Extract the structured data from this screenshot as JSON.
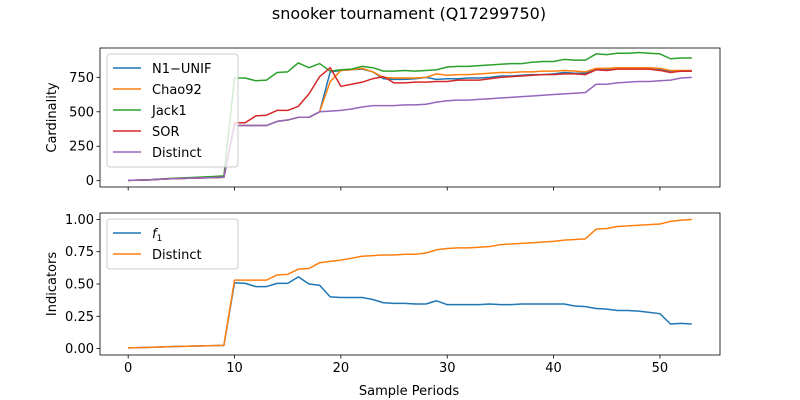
{
  "title": "snooker tournament (Q17299750)",
  "xlabel": "Sample Periods",
  "chart_data": [
    {
      "type": "line",
      "ylabel": "Cardinality",
      "xlim": [
        -2.65,
        55.65
      ],
      "ylim": [
        -46,
        963
      ],
      "x_ticks": [
        0,
        10,
        20,
        30,
        40,
        50
      ],
      "y_ticks": [
        0,
        250,
        500,
        750
      ],
      "y_tick_labels": [
        "0",
        "250",
        "500",
        "750"
      ],
      "legend_position": "upper-left",
      "x": [
        0,
        1,
        2,
        3,
        4,
        5,
        6,
        7,
        8,
        9,
        10,
        11,
        12,
        13,
        14,
        15,
        16,
        17,
        18,
        19,
        20,
        21,
        22,
        23,
        24,
        25,
        26,
        27,
        28,
        29,
        30,
        31,
        32,
        33,
        34,
        35,
        36,
        37,
        38,
        39,
        40,
        41,
        42,
        43,
        44,
        45,
        46,
        47,
        48,
        49,
        50,
        51,
        52,
        53
      ],
      "series": [
        {
          "name": "N1−UNIF",
          "color": "#1f77b4",
          "values": [
            2,
            4,
            6,
            10,
            14,
            16,
            18,
            20,
            22,
            25,
            400,
            400,
            400,
            400,
            430,
            440,
            460,
            460,
            500,
            790,
            800,
            805,
            810,
            790,
            740,
            735,
            735,
            740,
            750,
            735,
            740,
            740,
            745,
            745,
            750,
            760,
            760,
            765,
            770,
            770,
            775,
            785,
            780,
            780,
            810,
            810,
            815,
            815,
            815,
            815,
            810,
            795,
            795,
            795
          ]
        },
        {
          "name": "Chao92",
          "color": "#ff7f0e",
          "values": [
            2,
            4,
            6,
            10,
            14,
            16,
            18,
            20,
            22,
            25,
            400,
            400,
            400,
            400,
            430,
            440,
            460,
            460,
            500,
            720,
            800,
            805,
            815,
            790,
            750,
            745,
            745,
            745,
            750,
            775,
            765,
            770,
            770,
            775,
            780,
            785,
            785,
            790,
            790,
            795,
            795,
            800,
            795,
            790,
            815,
            815,
            820,
            820,
            820,
            820,
            815,
            800,
            800,
            800
          ]
        },
        {
          "name": "Jack1",
          "color": "#2ca02c",
          "values": [
            2,
            4,
            7,
            12,
            17,
            20,
            23,
            27,
            30,
            35,
            745,
            745,
            725,
            730,
            785,
            790,
            855,
            820,
            850,
            795,
            805,
            810,
            830,
            820,
            795,
            795,
            800,
            795,
            800,
            805,
            825,
            830,
            830,
            835,
            840,
            845,
            850,
            850,
            860,
            865,
            865,
            880,
            875,
            875,
            920,
            915,
            925,
            925,
            930,
            925,
            920,
            885,
            890,
            890
          ]
        },
        {
          "name": "SOR",
          "color": "#d62728",
          "values": [
            2,
            4,
            6,
            10,
            14,
            16,
            18,
            20,
            22,
            25,
            420,
            420,
            470,
            475,
            510,
            510,
            540,
            630,
            755,
            820,
            685,
            700,
            715,
            740,
            755,
            710,
            710,
            715,
            715,
            720,
            720,
            730,
            730,
            730,
            740,
            750,
            755,
            760,
            765,
            770,
            770,
            775,
            775,
            770,
            805,
            800,
            810,
            810,
            810,
            810,
            800,
            785,
            795,
            795
          ]
        },
        {
          "name": "Distinct",
          "color": "#9467bd",
          "values": [
            2,
            4,
            6,
            10,
            14,
            16,
            18,
            20,
            22,
            25,
            400,
            400,
            400,
            400,
            430,
            440,
            460,
            460,
            500,
            505,
            510,
            520,
            535,
            545,
            545,
            545,
            550,
            550,
            555,
            570,
            580,
            585,
            585,
            590,
            595,
            600,
            605,
            610,
            615,
            620,
            625,
            630,
            635,
            640,
            700,
            700,
            710,
            715,
            720,
            720,
            725,
            730,
            745,
            750
          ]
        }
      ]
    },
    {
      "type": "line",
      "ylabel": "Indicators",
      "xlim": [
        -2.65,
        55.65
      ],
      "ylim": [
        -0.05,
        1.05
      ],
      "x_ticks": [
        0,
        10,
        20,
        30,
        40,
        50
      ],
      "x_tick_labels": [
        "0",
        "10",
        "20",
        "30",
        "40",
        "50"
      ],
      "y_ticks": [
        0.0,
        0.25,
        0.5,
        0.75,
        1.0
      ],
      "y_tick_labels": [
        "0.00",
        "0.25",
        "0.50",
        "0.75",
        "1.00"
      ],
      "legend_position": "upper-left",
      "x": [
        0,
        1,
        2,
        3,
        4,
        5,
        6,
        7,
        8,
        9,
        10,
        11,
        12,
        13,
        14,
        15,
        16,
        17,
        18,
        19,
        20,
        21,
        22,
        23,
        24,
        25,
        26,
        27,
        28,
        29,
        30,
        31,
        32,
        33,
        34,
        35,
        36,
        37,
        38,
        39,
        40,
        41,
        42,
        43,
        44,
        45,
        46,
        47,
        48,
        49,
        50,
        51,
        52,
        53
      ],
      "series": [
        {
          "name": "f1",
          "label_main": "f",
          "label_sub": "1",
          "color": "#1f77b4",
          "values": [
            0.005,
            0.007,
            0.009,
            0.012,
            0.015,
            0.017,
            0.019,
            0.021,
            0.023,
            0.025,
            0.51,
            0.505,
            0.48,
            0.48,
            0.505,
            0.505,
            0.555,
            0.5,
            0.49,
            0.4,
            0.395,
            0.395,
            0.395,
            0.38,
            0.355,
            0.35,
            0.35,
            0.345,
            0.345,
            0.37,
            0.34,
            0.34,
            0.34,
            0.34,
            0.345,
            0.34,
            0.34,
            0.345,
            0.345,
            0.345,
            0.345,
            0.345,
            0.33,
            0.325,
            0.31,
            0.305,
            0.295,
            0.295,
            0.29,
            0.28,
            0.27,
            0.19,
            0.195,
            0.19
          ]
        },
        {
          "name": "Distinct",
          "color": "#ff7f0e",
          "values": [
            0.005,
            0.007,
            0.009,
            0.012,
            0.015,
            0.017,
            0.019,
            0.021,
            0.023,
            0.025,
            0.53,
            0.53,
            0.53,
            0.53,
            0.57,
            0.575,
            0.615,
            0.62,
            0.665,
            0.675,
            0.685,
            0.7,
            0.715,
            0.72,
            0.725,
            0.725,
            0.73,
            0.73,
            0.74,
            0.765,
            0.775,
            0.78,
            0.78,
            0.785,
            0.79,
            0.805,
            0.81,
            0.815,
            0.82,
            0.825,
            0.83,
            0.84,
            0.845,
            0.85,
            0.925,
            0.93,
            0.945,
            0.95,
            0.955,
            0.96,
            0.965,
            0.985,
            0.995,
            1.0
          ]
        }
      ]
    }
  ]
}
